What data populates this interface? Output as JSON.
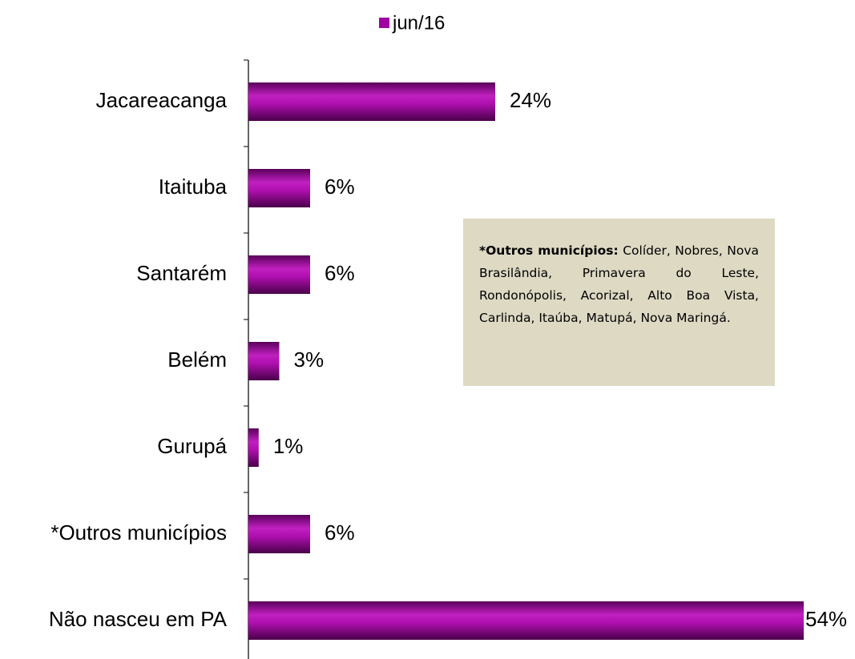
{
  "chart_data": {
    "type": "bar",
    "orientation": "horizontal",
    "categories": [
      "Jacareacanga",
      "Itaituba",
      "Santarém",
      "Belém",
      "Gurupá",
      "*Outros municípios",
      "Não nasceu em PA"
    ],
    "series": [
      {
        "name": "jun/16",
        "color": "#a000a0",
        "values": [
          24,
          6,
          6,
          3,
          1,
          6,
          54
        ],
        "value_labels": [
          "24%",
          "6%",
          "6%",
          "3%",
          "1%",
          "6%",
          "54%"
        ]
      }
    ],
    "legend": "top",
    "annotation": {
      "title": "*Outros municípios:",
      "text": "Colíder, Nobres, Nova Brasilândia, Primavera do Leste, Rondonópolis, Acorizal, Alto Boa Vista, Carlinda, Itaúba, Matupá, Nova Maringá."
    }
  }
}
